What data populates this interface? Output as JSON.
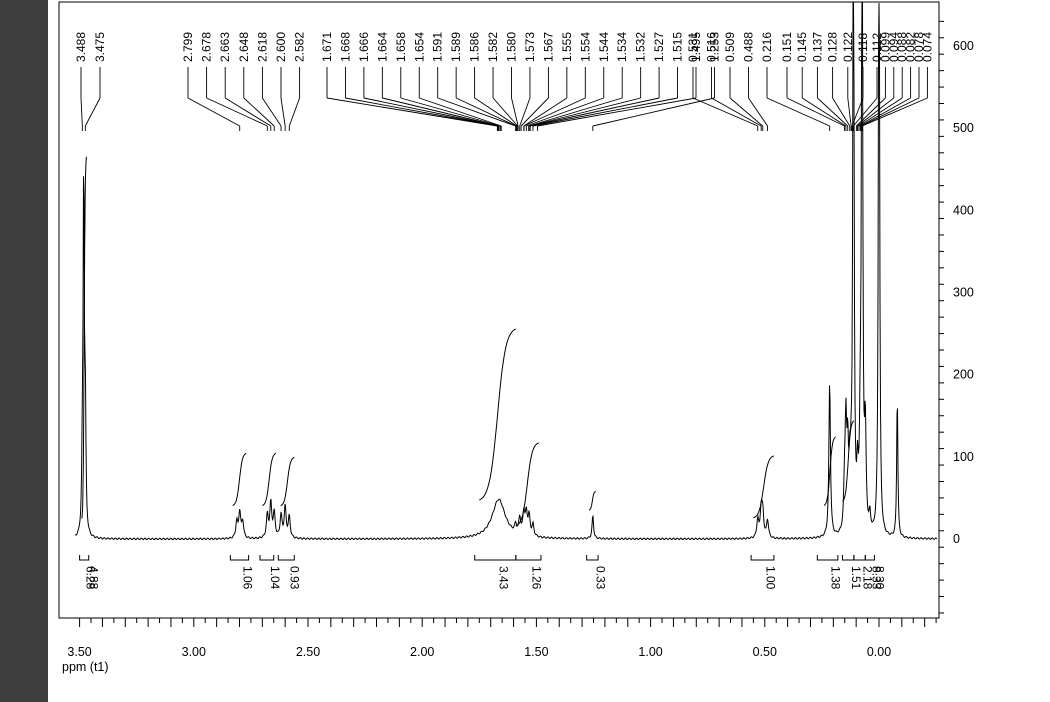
{
  "chart_data": {
    "type": "line",
    "xlabel": "ppm (t1)",
    "x_range": [
      3.55,
      -0.27
    ],
    "y_range": [
      -95,
      645
    ],
    "x_ticks": [
      {
        "value": 3.5,
        "label": "3.50"
      },
      {
        "value": 3.0,
        "label": "3.00"
      },
      {
        "value": 2.5,
        "label": "2.50"
      },
      {
        "value": 2.0,
        "label": "2.00"
      },
      {
        "value": 1.5,
        "label": "1.50"
      },
      {
        "value": 1.0,
        "label": "1.00"
      },
      {
        "value": 0.5,
        "label": "0.50"
      },
      {
        "value": 0.0,
        "label": "0.00"
      }
    ],
    "y_ticks": [
      {
        "value": 600,
        "label": "600"
      },
      {
        "value": 500,
        "label": "500"
      },
      {
        "value": 400,
        "label": "400"
      },
      {
        "value": 300,
        "label": "300"
      },
      {
        "value": 200,
        "label": "200"
      },
      {
        "value": 100,
        "label": "100"
      },
      {
        "value": 0,
        "label": "0"
      }
    ],
    "peak_labels": [
      {
        "text": "3.488",
        "value": 3.488
      },
      {
        "text": "3.475",
        "value": 3.475
      },
      {
        "text": "2.799",
        "value": 2.799
      },
      {
        "text": "2.678",
        "value": 2.678
      },
      {
        "text": "2.663",
        "value": 2.663
      },
      {
        "text": "2.648",
        "value": 2.648
      },
      {
        "text": "2.618",
        "value": 2.618
      },
      {
        "text": "2.600",
        "value": 2.6
      },
      {
        "text": "2.582",
        "value": 2.582
      },
      {
        "text": "1.671",
        "value": 1.671
      },
      {
        "text": "1.668",
        "value": 1.668
      },
      {
        "text": "1.666",
        "value": 1.666
      },
      {
        "text": "1.664",
        "value": 1.664
      },
      {
        "text": "1.658",
        "value": 1.658
      },
      {
        "text": "1.654",
        "value": 1.654
      },
      {
        "text": "1.591",
        "value": 1.591
      },
      {
        "text": "1.589",
        "value": 1.589
      },
      {
        "text": "1.586",
        "value": 1.586
      },
      {
        "text": "1.582",
        "value": 1.582
      },
      {
        "text": "1.580",
        "value": 1.58
      },
      {
        "text": "1.573",
        "value": 1.573
      },
      {
        "text": "1.567",
        "value": 1.567
      },
      {
        "text": "1.555",
        "value": 1.555
      },
      {
        "text": "1.554",
        "value": 1.554
      },
      {
        "text": "1.544",
        "value": 1.544
      },
      {
        "text": "1.534",
        "value": 1.534
      },
      {
        "text": "1.532",
        "value": 1.532
      },
      {
        "text": "1.527",
        "value": 1.527
      },
      {
        "text": "1.515",
        "value": 1.515
      },
      {
        "text": "1.495",
        "value": 1.495
      },
      {
        "text": "1.253",
        "value": 1.253
      },
      {
        "text": "0.531",
        "value": 0.531
      },
      {
        "text": "0.516",
        "value": 0.516
      },
      {
        "text": "0.509",
        "value": 0.509
      },
      {
        "text": "0.488",
        "value": 0.488
      },
      {
        "text": "0.216",
        "value": 0.216
      },
      {
        "text": "0.151",
        "value": 0.151
      },
      {
        "text": "0.145",
        "value": 0.145
      },
      {
        "text": "0.137",
        "value": 0.137
      },
      {
        "text": "0.128",
        "value": 0.128
      },
      {
        "text": "0.122",
        "value": 0.122
      },
      {
        "text": "0.118",
        "value": 0.118
      },
      {
        "text": "0.112",
        "value": 0.112
      },
      {
        "text": "0.099",
        "value": 0.099
      },
      {
        "text": "0.094",
        "value": 0.094
      },
      {
        "text": "0.088",
        "value": 0.088
      },
      {
        "text": "0.082",
        "value": 0.082
      },
      {
        "text": "0.078",
        "value": 0.078
      },
      {
        "text": "0.074",
        "value": 0.074
      }
    ],
    "integrals": [
      {
        "labels": [
          "6.28",
          "4.88"
        ],
        "from": 3.5,
        "to": 3.46
      },
      {
        "labels": [
          "1.06"
        ],
        "from": 2.84,
        "to": 2.76
      },
      {
        "labels": [
          "1.04"
        ],
        "from": 2.71,
        "to": 2.65
      },
      {
        "labels": [
          "0.93"
        ],
        "from": 2.63,
        "to": 2.56
      },
      {
        "labels": [
          "3.43"
        ],
        "from": 1.77,
        "to": 1.59
      },
      {
        "labels": [
          "1.26"
        ],
        "from": 1.59,
        "to": 1.48
      },
      {
        "labels": [
          "0.33"
        ],
        "from": 1.28,
        "to": 1.23
      },
      {
        "labels": [
          "1.00"
        ],
        "from": 0.56,
        "to": 0.46
      },
      {
        "labels": [
          "1.38"
        ],
        "from": 0.27,
        "to": 0.18
      },
      {
        "labels": [
          "1.51"
        ],
        "from": 0.16,
        "to": 0.11
      },
      {
        "labels": [
          "2.18"
        ],
        "from": 0.11,
        "to": 0.06
      },
      {
        "labels": [
          "8.33",
          "8.30"
        ],
        "from": 0.06,
        "to": 0.02
      }
    ],
    "peaks": [
      {
        "x": 3.488,
        "y": 82,
        "w": 0.003
      },
      {
        "x": 3.482,
        "y": 440,
        "w": 0.003
      },
      {
        "x": 3.475,
        "y": 150,
        "w": 0.003
      },
      {
        "x": 2.812,
        "y": 20,
        "w": 0.005
      },
      {
        "x": 2.799,
        "y": 32,
        "w": 0.005
      },
      {
        "x": 2.786,
        "y": 20,
        "w": 0.005
      },
      {
        "x": 2.678,
        "y": 28,
        "w": 0.005
      },
      {
        "x": 2.663,
        "y": 42,
        "w": 0.005
      },
      {
        "x": 2.648,
        "y": 30,
        "w": 0.005
      },
      {
        "x": 2.618,
        "y": 28,
        "w": 0.005
      },
      {
        "x": 2.6,
        "y": 38,
        "w": 0.005
      },
      {
        "x": 2.582,
        "y": 26,
        "w": 0.005
      },
      {
        "x": 1.665,
        "y": 48,
        "w": 0.035
      },
      {
        "x": 1.591,
        "y": 10,
        "w": 0.005
      },
      {
        "x": 1.573,
        "y": 20,
        "w": 0.005
      },
      {
        "x": 1.555,
        "y": 28,
        "w": 0.005
      },
      {
        "x": 1.544,
        "y": 26,
        "w": 0.005
      },
      {
        "x": 1.532,
        "y": 24,
        "w": 0.005
      },
      {
        "x": 1.515,
        "y": 14,
        "w": 0.005
      },
      {
        "x": 1.253,
        "y": 28,
        "w": 0.004
      },
      {
        "x": 0.531,
        "y": 22,
        "w": 0.005
      },
      {
        "x": 0.516,
        "y": 34,
        "w": 0.005
      },
      {
        "x": 0.509,
        "y": 30,
        "w": 0.005
      },
      {
        "x": 0.488,
        "y": 22,
        "w": 0.005
      },
      {
        "x": 0.216,
        "y": 190,
        "w": 0.004
      },
      {
        "x": 0.151,
        "y": 50,
        "w": 0.004
      },
      {
        "x": 0.145,
        "y": 125,
        "w": 0.004
      },
      {
        "x": 0.137,
        "y": 90,
        "w": 0.004
      },
      {
        "x": 0.128,
        "y": 60,
        "w": 0.004
      },
      {
        "x": 0.122,
        "y": 40,
        "w": 0.004
      },
      {
        "x": 0.112,
        "y": 900,
        "w": 0.003
      },
      {
        "x": 0.094,
        "y": 60,
        "w": 0.004
      },
      {
        "x": 0.082,
        "y": 100,
        "w": 0.004
      },
      {
        "x": 0.074,
        "y": 900,
        "w": 0.003
      },
      {
        "x": 0.06,
        "y": 120,
        "w": 0.004
      },
      {
        "x": 0.04,
        "y": 20,
        "w": 0.004
      },
      {
        "x": 0.0,
        "y": 900,
        "w": 0.003
      },
      {
        "x": -0.08,
        "y": 175,
        "w": 0.003
      }
    ],
    "integral_curves": [
      {
        "from": 3.49,
        "to": 3.47,
        "y0": 20,
        "y1": 470
      },
      {
        "from": 2.83,
        "to": 2.77,
        "y0": 40,
        "y1": 105
      },
      {
        "from": 2.7,
        "to": 2.64,
        "y0": 40,
        "y1": 105
      },
      {
        "from": 2.62,
        "to": 2.56,
        "y0": 40,
        "y1": 100
      },
      {
        "from": 1.75,
        "to": 1.59,
        "y0": 45,
        "y1": 258
      },
      {
        "from": 1.59,
        "to": 1.49,
        "y0": 15,
        "y1": 118
      },
      {
        "from": 1.27,
        "to": 1.24,
        "y0": 35,
        "y1": 58
      },
      {
        "from": 0.55,
        "to": 0.46,
        "y0": 25,
        "y1": 102
      },
      {
        "from": 0.24,
        "to": 0.19,
        "y0": 40,
        "y1": 125
      },
      {
        "from": 0.16,
        "to": 0.11,
        "y0": 45,
        "y1": 145
      }
    ]
  }
}
